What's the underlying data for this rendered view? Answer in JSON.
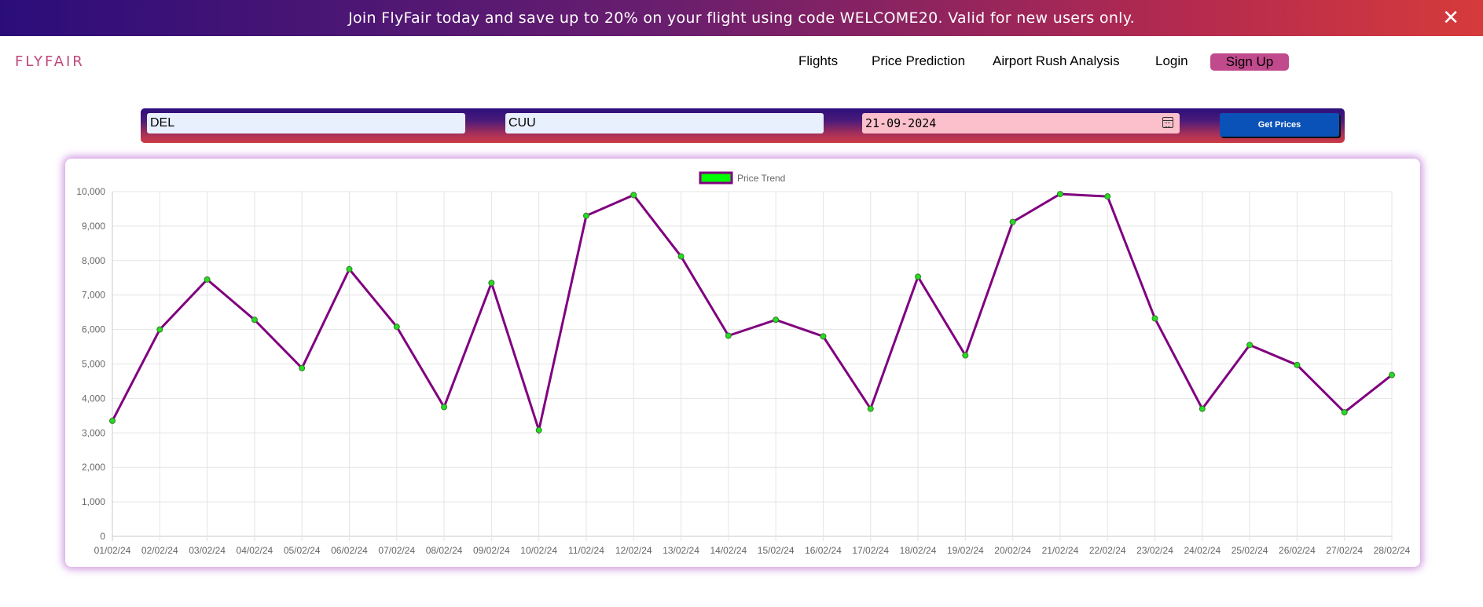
{
  "banner": {
    "text": "Join FlyFair today and save up to 20% on your flight using code WELCOME20. Valid for new users only.",
    "close_label": "✕"
  },
  "nav": {
    "logo": "FLYFAIR",
    "links": [
      "Flights",
      "Price Prediction",
      "Airport Rush Analysis",
      "Login"
    ],
    "signup": "Sign Up"
  },
  "search": {
    "from_value": "DEL",
    "to_value": "CUU",
    "date_value": "21-09-2024",
    "button_label": "Get Prices"
  },
  "colors": {
    "line": "#800080",
    "point_fill": "#22dd22",
    "legend_fill": "#00ff00",
    "accent": "#c04a8c",
    "button": "#0b52b8"
  },
  "chart_data": {
    "type": "line",
    "legend": "Price Trend",
    "legend_position": "top-center",
    "grid": true,
    "ylim": [
      0,
      10000
    ],
    "yticks": [
      "0",
      "1,000",
      "2,000",
      "3,000",
      "4,000",
      "5,000",
      "6,000",
      "7,000",
      "8,000",
      "9,000",
      "10,000"
    ],
    "x": [
      "01/02/24",
      "02/02/24",
      "03/02/24",
      "04/02/24",
      "05/02/24",
      "06/02/24",
      "07/02/24",
      "08/02/24",
      "09/02/24",
      "10/02/24",
      "11/02/24",
      "12/02/24",
      "13/02/24",
      "14/02/24",
      "15/02/24",
      "16/02/24",
      "17/02/24",
      "18/02/24",
      "19/02/24",
      "20/02/24",
      "21/02/24",
      "22/02/24",
      "23/02/24",
      "24/02/24",
      "25/02/24",
      "26/02/24",
      "27/02/24",
      "28/02/24"
    ],
    "values": [
      3350,
      6000,
      7450,
      6280,
      4880,
      7750,
      6080,
      3750,
      7350,
      3080,
      9300,
      9900,
      8120,
      5820,
      6280,
      5800,
      3700,
      7530,
      5250,
      9120,
      9930,
      9860,
      6320,
      3700,
      5550,
      4970,
      3600,
      4680
    ]
  }
}
